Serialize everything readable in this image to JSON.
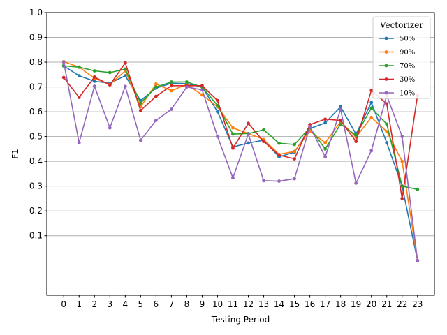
{
  "chart_data": {
    "type": "line",
    "title": "",
    "xlabel": "Testing Period",
    "ylabel": "F1",
    "x": [
      0,
      1,
      2,
      3,
      4,
      5,
      6,
      7,
      8,
      9,
      10,
      11,
      12,
      13,
      14,
      15,
      16,
      17,
      18,
      19,
      20,
      21,
      22,
      23
    ],
    "xlim": [
      -1.1,
      24.1
    ],
    "ylim": [
      -0.14,
      1.0
    ],
    "yticks": [
      0.1,
      0.2,
      0.3,
      0.4,
      0.5,
      0.6,
      0.7,
      0.8,
      0.9,
      1.0
    ],
    "ytick_labels": [
      "0.1",
      "0.2",
      "0.3",
      "0.4",
      "0.5",
      "0.6",
      "0.7",
      "0.8",
      "0.9",
      "1.0"
    ],
    "grid": "horizontal",
    "legend": {
      "title": "Vectorizer",
      "placement": "top-right"
    },
    "series": [
      {
        "name": "50%",
        "color": "#1f77b4",
        "values": [
          0.785,
          0.745,
          0.723,
          0.715,
          0.745,
          0.645,
          0.695,
          0.715,
          0.713,
          0.7,
          0.6,
          0.458,
          0.474,
          0.485,
          0.418,
          0.437,
          0.532,
          0.555,
          0.62,
          0.51,
          0.637,
          0.475,
          0.3,
          0.0
        ]
      },
      {
        "name": "90%",
        "color": "#ff7f0e",
        "values": [
          0.802,
          0.78,
          0.735,
          0.71,
          0.765,
          0.62,
          0.712,
          0.685,
          0.71,
          0.668,
          0.62,
          0.535,
          0.512,
          0.488,
          0.428,
          0.44,
          0.522,
          0.475,
          0.56,
          0.498,
          0.577,
          0.52,
          0.4,
          0.0
        ]
      },
      {
        "name": "70%",
        "color": "#2ca02c",
        "values": [
          0.785,
          0.78,
          0.765,
          0.758,
          0.772,
          0.635,
          0.7,
          0.72,
          0.72,
          0.7,
          0.625,
          0.51,
          0.512,
          0.527,
          0.473,
          0.468,
          0.535,
          0.45,
          0.55,
          0.505,
          0.615,
          0.55,
          0.3,
          0.287
        ]
      },
      {
        "name": "30%",
        "color": "#d62728",
        "values": [
          0.738,
          0.658,
          0.74,
          0.708,
          0.797,
          0.605,
          0.662,
          0.705,
          0.705,
          0.705,
          0.645,
          0.453,
          0.553,
          0.48,
          0.425,
          0.41,
          0.548,
          0.57,
          0.565,
          0.48,
          0.686,
          0.632,
          0.25,
          0.666
        ]
      },
      {
        "name": "10%",
        "color": "#9467bd",
        "values": [
          0.8,
          0.475,
          0.703,
          0.535,
          0.702,
          0.485,
          0.565,
          0.61,
          0.7,
          0.688,
          0.5,
          0.333,
          0.51,
          0.322,
          0.32,
          0.33,
          0.54,
          0.418,
          0.61,
          0.312,
          0.443,
          0.665,
          0.5,
          0.0
        ]
      }
    ]
  }
}
